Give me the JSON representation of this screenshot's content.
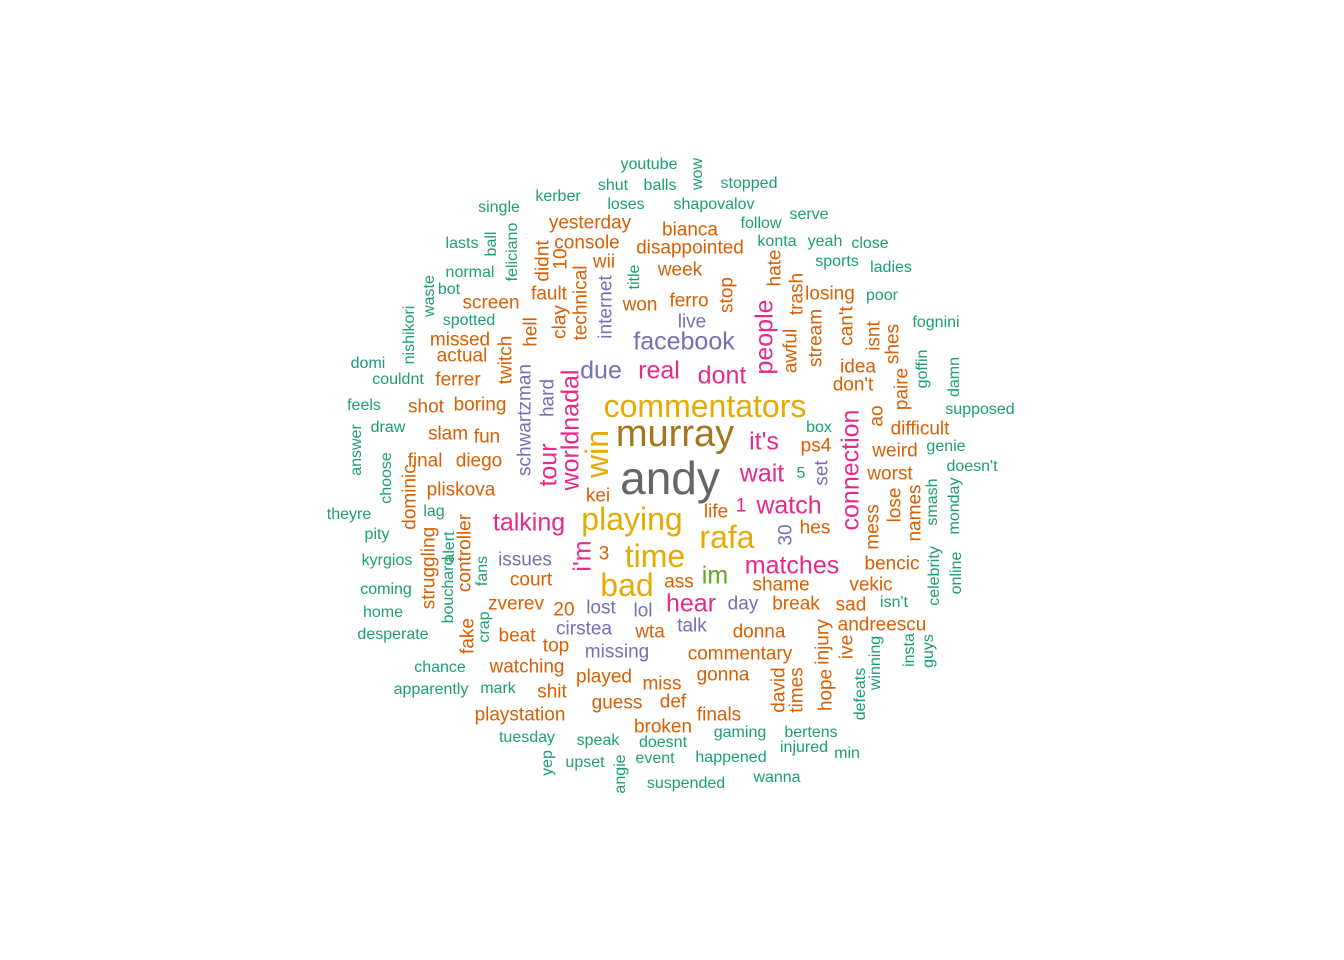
{
  "palette": {
    "teal": "#1b9e77",
    "orange": "#d95f02",
    "purple": "#7570b3",
    "pink": "#e7298a",
    "green": "#66a61e",
    "gold": "#e6ab02",
    "brown": "#a6761d",
    "gray": "#666666"
  },
  "words": [
    {
      "text": "andy",
      "color": "gray",
      "size": "xxl"
    },
    {
      "text": "murray",
      "color": "brown",
      "size": "xl"
    },
    {
      "text": "commentators",
      "color": "gold",
      "size": "l"
    },
    {
      "text": "playing",
      "color": "gold",
      "size": "l"
    },
    {
      "text": "time",
      "color": "gold",
      "size": "l"
    },
    {
      "text": "bad",
      "color": "gold",
      "size": "l"
    },
    {
      "text": "rafa",
      "color": "gold",
      "size": "l"
    },
    {
      "text": "win",
      "color": "gold",
      "size": "l"
    },
    {
      "text": "im",
      "color": "green",
      "size": "m"
    },
    {
      "text": "wait",
      "color": "pink",
      "size": "m"
    },
    {
      "text": "watch",
      "color": "pink",
      "size": "m"
    },
    {
      "text": "it's",
      "color": "pink",
      "size": "m"
    },
    {
      "text": "worldnadal",
      "color": "pink",
      "size": "m"
    },
    {
      "text": "matches",
      "color": "pink",
      "size": "m"
    },
    {
      "text": "hear",
      "color": "pink",
      "size": "m"
    },
    {
      "text": "talking",
      "color": "pink",
      "size": "m"
    },
    {
      "text": "connection",
      "color": "pink",
      "size": "m"
    },
    {
      "text": "dont",
      "color": "pink",
      "size": "m"
    },
    {
      "text": "real",
      "color": "pink",
      "size": "m"
    },
    {
      "text": "people",
      "color": "pink",
      "size": "m"
    },
    {
      "text": "i'm",
      "color": "pink",
      "size": "m"
    },
    {
      "text": "tour",
      "color": "pink",
      "size": "m"
    },
    {
      "text": "facebook",
      "color": "purple",
      "size": "m"
    },
    {
      "text": "due",
      "color": "purple",
      "size": "m"
    },
    {
      "text": "live",
      "color": "purple",
      "size": "s"
    },
    {
      "text": "schwartzman",
      "color": "purple",
      "size": "s"
    },
    {
      "text": "internet",
      "color": "purple",
      "size": "s"
    },
    {
      "text": "hard",
      "color": "purple",
      "size": "s"
    },
    {
      "text": "issues",
      "color": "purple",
      "size": "s"
    },
    {
      "text": "lost",
      "color": "purple",
      "size": "s"
    },
    {
      "text": "lol",
      "color": "purple",
      "size": "s"
    },
    {
      "text": "day",
      "color": "purple",
      "size": "s"
    },
    {
      "text": "cirstea",
      "color": "purple",
      "size": "s"
    },
    {
      "text": "missing",
      "color": "purple",
      "size": "s"
    },
    {
      "text": "talk",
      "color": "purple",
      "size": "s"
    },
    {
      "text": "set",
      "color": "purple",
      "size": "s"
    },
    {
      "text": "30",
      "color": "purple",
      "size": "s"
    },
    {
      "text": "1",
      "color": "pink",
      "size": "s"
    },
    {
      "text": "ps4",
      "color": "orange",
      "size": "s"
    },
    {
      "text": "shame",
      "color": "orange",
      "size": "s"
    },
    {
      "text": "court",
      "color": "orange",
      "size": "s"
    },
    {
      "text": "break",
      "color": "orange",
      "size": "s"
    },
    {
      "text": "donna",
      "color": "orange",
      "size": "s"
    },
    {
      "text": "commentary",
      "color": "orange",
      "size": "s"
    },
    {
      "text": "gonna",
      "color": "orange",
      "size": "s"
    },
    {
      "text": "zverev",
      "color": "orange",
      "size": "s"
    },
    {
      "text": "beat",
      "color": "orange",
      "size": "s"
    },
    {
      "text": "watching",
      "color": "orange",
      "size": "s"
    },
    {
      "text": "played",
      "color": "orange",
      "size": "s"
    },
    {
      "text": "miss",
      "color": "orange",
      "size": "s"
    },
    {
      "text": "guess",
      "color": "orange",
      "size": "s"
    },
    {
      "text": "playstation",
      "color": "orange",
      "size": "s"
    },
    {
      "text": "wta",
      "color": "orange",
      "size": "s"
    },
    {
      "text": "pliskova",
      "color": "orange",
      "size": "s"
    },
    {
      "text": "diego",
      "color": "orange",
      "size": "s"
    },
    {
      "text": "boring",
      "color": "orange",
      "size": "s"
    },
    {
      "text": "fun",
      "color": "orange",
      "size": "s"
    },
    {
      "text": "controller",
      "color": "orange",
      "size": "s"
    },
    {
      "text": "twitch",
      "color": "orange",
      "size": "s"
    },
    {
      "text": "clay",
      "color": "orange",
      "size": "s"
    },
    {
      "text": "technical",
      "color": "orange",
      "size": "s"
    },
    {
      "text": "won",
      "color": "orange",
      "size": "s"
    },
    {
      "text": "ferro",
      "color": "orange",
      "size": "s"
    },
    {
      "text": "stop",
      "color": "orange",
      "size": "s"
    },
    {
      "text": "week",
      "color": "orange",
      "size": "s"
    },
    {
      "text": "disappointed",
      "color": "orange",
      "size": "s"
    },
    {
      "text": "console",
      "color": "orange",
      "size": "s"
    },
    {
      "text": "yesterday",
      "color": "orange",
      "size": "s"
    },
    {
      "text": "bianca",
      "color": "orange",
      "size": "s"
    },
    {
      "text": "screen",
      "color": "orange",
      "size": "s"
    },
    {
      "text": "missed",
      "color": "orange",
      "size": "s"
    },
    {
      "text": "actual",
      "color": "orange",
      "size": "s"
    },
    {
      "text": "ferrer",
      "color": "orange",
      "size": "s"
    },
    {
      "text": "shot",
      "color": "orange",
      "size": "s"
    },
    {
      "text": "slam",
      "color": "orange",
      "size": "s"
    },
    {
      "text": "final",
      "color": "orange",
      "size": "s"
    },
    {
      "text": "dominic",
      "color": "orange",
      "size": "s"
    },
    {
      "text": "struggling",
      "color": "orange",
      "size": "s"
    },
    {
      "text": "fake",
      "color": "orange",
      "size": "s"
    },
    {
      "text": "hell",
      "color": "orange",
      "size": "s"
    },
    {
      "text": "wii",
      "color": "orange",
      "size": "s"
    },
    {
      "text": "fault",
      "color": "orange",
      "size": "s"
    },
    {
      "text": "didnt",
      "color": "orange",
      "size": "s"
    },
    {
      "text": "10",
      "color": "orange",
      "size": "s"
    },
    {
      "text": "3",
      "color": "orange",
      "size": "s"
    },
    {
      "text": "20",
      "color": "orange",
      "size": "s"
    },
    {
      "text": "kei",
      "color": "orange",
      "size": "s"
    },
    {
      "text": "life",
      "color": "orange",
      "size": "s"
    },
    {
      "text": "hes",
      "color": "orange",
      "size": "s"
    },
    {
      "text": "ass",
      "color": "orange",
      "size": "s"
    },
    {
      "text": "top",
      "color": "orange",
      "size": "s"
    },
    {
      "text": "shit",
      "color": "orange",
      "size": "s"
    },
    {
      "text": "def",
      "color": "orange",
      "size": "s"
    },
    {
      "text": "broken",
      "color": "orange",
      "size": "s"
    },
    {
      "text": "finals",
      "color": "orange",
      "size": "s"
    },
    {
      "text": "sad",
      "color": "orange",
      "size": "s"
    },
    {
      "text": "vekic",
      "color": "orange",
      "size": "s"
    },
    {
      "text": "bencic",
      "color": "orange",
      "size": "s"
    },
    {
      "text": "andreescu",
      "color": "orange",
      "size": "s"
    },
    {
      "text": "injury",
      "color": "orange",
      "size": "s"
    },
    {
      "text": "hope",
      "color": "orange",
      "size": "s"
    },
    {
      "text": "times",
      "color": "orange",
      "size": "s"
    },
    {
      "text": "david",
      "color": "orange",
      "size": "s"
    },
    {
      "text": "ive",
      "color": "orange",
      "size": "s"
    },
    {
      "text": "mess",
      "color": "orange",
      "size": "s"
    },
    {
      "text": "lose",
      "color": "orange",
      "size": "s"
    },
    {
      "text": "names",
      "color": "orange",
      "size": "s"
    },
    {
      "text": "worst",
      "color": "orange",
      "size": "s"
    },
    {
      "text": "weird",
      "color": "orange",
      "size": "s"
    },
    {
      "text": "difficult",
      "color": "orange",
      "size": "s"
    },
    {
      "text": "don't",
      "color": "orange",
      "size": "s"
    },
    {
      "text": "idea",
      "color": "orange",
      "size": "s"
    },
    {
      "text": "can't",
      "color": "orange",
      "size": "s"
    },
    {
      "text": "stream",
      "color": "orange",
      "size": "s"
    },
    {
      "text": "awful",
      "color": "orange",
      "size": "s"
    },
    {
      "text": "trash",
      "color": "orange",
      "size": "s"
    },
    {
      "text": "hate",
      "color": "orange",
      "size": "s"
    },
    {
      "text": "losing",
      "color": "orange",
      "size": "s"
    },
    {
      "text": "isnt",
      "color": "orange",
      "size": "s"
    },
    {
      "text": "shes",
      "color": "orange",
      "size": "s"
    },
    {
      "text": "paire",
      "color": "orange",
      "size": "s"
    },
    {
      "text": "ao",
      "color": "orange",
      "size": "s"
    },
    {
      "text": "youtube",
      "color": "teal",
      "size": "xs"
    },
    {
      "text": "wow",
      "color": "teal",
      "size": "xs"
    },
    {
      "text": "shut",
      "color": "teal",
      "size": "xs"
    },
    {
      "text": "balls",
      "color": "teal",
      "size": "xs"
    },
    {
      "text": "stopped",
      "color": "teal",
      "size": "xs"
    },
    {
      "text": "kerber",
      "color": "teal",
      "size": "xs"
    },
    {
      "text": "loses",
      "color": "teal",
      "size": "xs"
    },
    {
      "text": "shapovalov",
      "color": "teal",
      "size": "xs"
    },
    {
      "text": "single",
      "color": "teal",
      "size": "xs"
    },
    {
      "text": "follow",
      "color": "teal",
      "size": "xs"
    },
    {
      "text": "serve",
      "color": "teal",
      "size": "xs"
    },
    {
      "text": "lasts",
      "color": "teal",
      "size": "xs"
    },
    {
      "text": "ball",
      "color": "teal",
      "size": "xs"
    },
    {
      "text": "feliciano",
      "color": "teal",
      "size": "xs"
    },
    {
      "text": "konta",
      "color": "teal",
      "size": "xs"
    },
    {
      "text": "yeah",
      "color": "teal",
      "size": "xs"
    },
    {
      "text": "close",
      "color": "teal",
      "size": "xs"
    },
    {
      "text": "normal",
      "color": "teal",
      "size": "xs"
    },
    {
      "text": "sports",
      "color": "teal",
      "size": "xs"
    },
    {
      "text": "ladies",
      "color": "teal",
      "size": "xs"
    },
    {
      "text": "title",
      "color": "teal",
      "size": "xs"
    },
    {
      "text": "waste",
      "color": "teal",
      "size": "xs"
    },
    {
      "text": "bot",
      "color": "teal",
      "size": "xs"
    },
    {
      "text": "poor",
      "color": "teal",
      "size": "xs"
    },
    {
      "text": "spotted",
      "color": "teal",
      "size": "xs"
    },
    {
      "text": "nishikori",
      "color": "teal",
      "size": "xs"
    },
    {
      "text": "fognini",
      "color": "teal",
      "size": "xs"
    },
    {
      "text": "domi",
      "color": "teal",
      "size": "xs"
    },
    {
      "text": "goffin",
      "color": "teal",
      "size": "xs"
    },
    {
      "text": "damn",
      "color": "teal",
      "size": "xs"
    },
    {
      "text": "couldnt",
      "color": "teal",
      "size": "xs"
    },
    {
      "text": "feels",
      "color": "teal",
      "size": "xs"
    },
    {
      "text": "supposed",
      "color": "teal",
      "size": "xs"
    },
    {
      "text": "draw",
      "color": "teal",
      "size": "xs"
    },
    {
      "text": "box",
      "color": "teal",
      "size": "xs"
    },
    {
      "text": "answer",
      "color": "teal",
      "size": "xs"
    },
    {
      "text": "genie",
      "color": "teal",
      "size": "xs"
    },
    {
      "text": "choose",
      "color": "teal",
      "size": "xs"
    },
    {
      "text": "doesn't",
      "color": "teal",
      "size": "xs"
    },
    {
      "text": "5",
      "color": "teal",
      "size": "xs"
    },
    {
      "text": "theyre",
      "color": "teal",
      "size": "xs"
    },
    {
      "text": "lag",
      "color": "teal",
      "size": "xs"
    },
    {
      "text": "smash",
      "color": "teal",
      "size": "xs"
    },
    {
      "text": "monday",
      "color": "teal",
      "size": "xs"
    },
    {
      "text": "pity",
      "color": "teal",
      "size": "xs"
    },
    {
      "text": "alert",
      "color": "teal",
      "size": "xs"
    },
    {
      "text": "kyrgios",
      "color": "teal",
      "size": "xs"
    },
    {
      "text": "fans",
      "color": "teal",
      "size": "xs"
    },
    {
      "text": "online",
      "color": "teal",
      "size": "xs"
    },
    {
      "text": "celebrity",
      "color": "teal",
      "size": "xs"
    },
    {
      "text": "coming",
      "color": "teal",
      "size": "xs"
    },
    {
      "text": "isn't",
      "color": "teal",
      "size": "xs"
    },
    {
      "text": "home",
      "color": "teal",
      "size": "xs"
    },
    {
      "text": "bouchard",
      "color": "teal",
      "size": "xs"
    },
    {
      "text": "crap",
      "color": "teal",
      "size": "xs"
    },
    {
      "text": "desperate",
      "color": "teal",
      "size": "xs"
    },
    {
      "text": "insta",
      "color": "teal",
      "size": "xs"
    },
    {
      "text": "guys",
      "color": "teal",
      "size": "xs"
    },
    {
      "text": "winning",
      "color": "teal",
      "size": "xs"
    },
    {
      "text": "defeats",
      "color": "teal",
      "size": "xs"
    },
    {
      "text": "chance",
      "color": "teal",
      "size": "xs"
    },
    {
      "text": "apparently",
      "color": "teal",
      "size": "xs"
    },
    {
      "text": "mark",
      "color": "teal",
      "size": "xs"
    },
    {
      "text": "tuesday",
      "color": "teal",
      "size": "xs"
    },
    {
      "text": "speak",
      "color": "teal",
      "size": "xs"
    },
    {
      "text": "doesnt",
      "color": "teal",
      "size": "xs"
    },
    {
      "text": "gaming",
      "color": "teal",
      "size": "xs"
    },
    {
      "text": "bertens",
      "color": "teal",
      "size": "xs"
    },
    {
      "text": "injured",
      "color": "teal",
      "size": "xs"
    },
    {
      "text": "min",
      "color": "teal",
      "size": "xs"
    },
    {
      "text": "yep",
      "color": "teal",
      "size": "xs"
    },
    {
      "text": "upset",
      "color": "teal",
      "size": "xs"
    },
    {
      "text": "event",
      "color": "teal",
      "size": "xs"
    },
    {
      "text": "happened",
      "color": "teal",
      "size": "xs"
    },
    {
      "text": "angie",
      "color": "teal",
      "size": "xs"
    },
    {
      "text": "suspended",
      "color": "teal",
      "size": "xs"
    },
    {
      "text": "wanna",
      "color": "teal",
      "size": "xs"
    }
  ]
}
